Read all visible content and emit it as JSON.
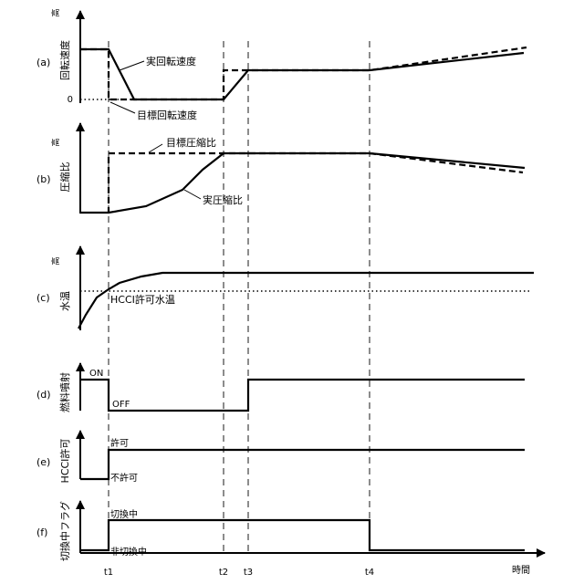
{
  "panels": {
    "a": {
      "tag": "(a)",
      "ylabel": "回転速度",
      "high": "高",
      "zero": "0",
      "label_actual": "実回転速度",
      "label_target": "目標回転速度"
    },
    "b": {
      "tag": "(b)",
      "ylabel": "圧縮比",
      "high": "高",
      "label_target": "目標圧縮比",
      "label_actual": "実圧縮比"
    },
    "c": {
      "tag": "(c)",
      "ylabel": "水温",
      "high": "高",
      "label_threshold": "HCCI許可水温"
    },
    "d": {
      "tag": "(d)",
      "ylabel": "燃料噴射",
      "on": "ON",
      "off": "OFF"
    },
    "e": {
      "tag": "(e)",
      "ylabel": "HCCI許可",
      "allow": "許可",
      "deny": "不許可"
    },
    "f": {
      "tag": "(f)",
      "ylabel": "切換中フラグ",
      "switching": "切換中",
      "not_switching": "非切換中"
    }
  },
  "time_axis": {
    "label": "時間",
    "ticks": [
      "t1",
      "t2",
      "t3",
      "t4"
    ]
  }
}
